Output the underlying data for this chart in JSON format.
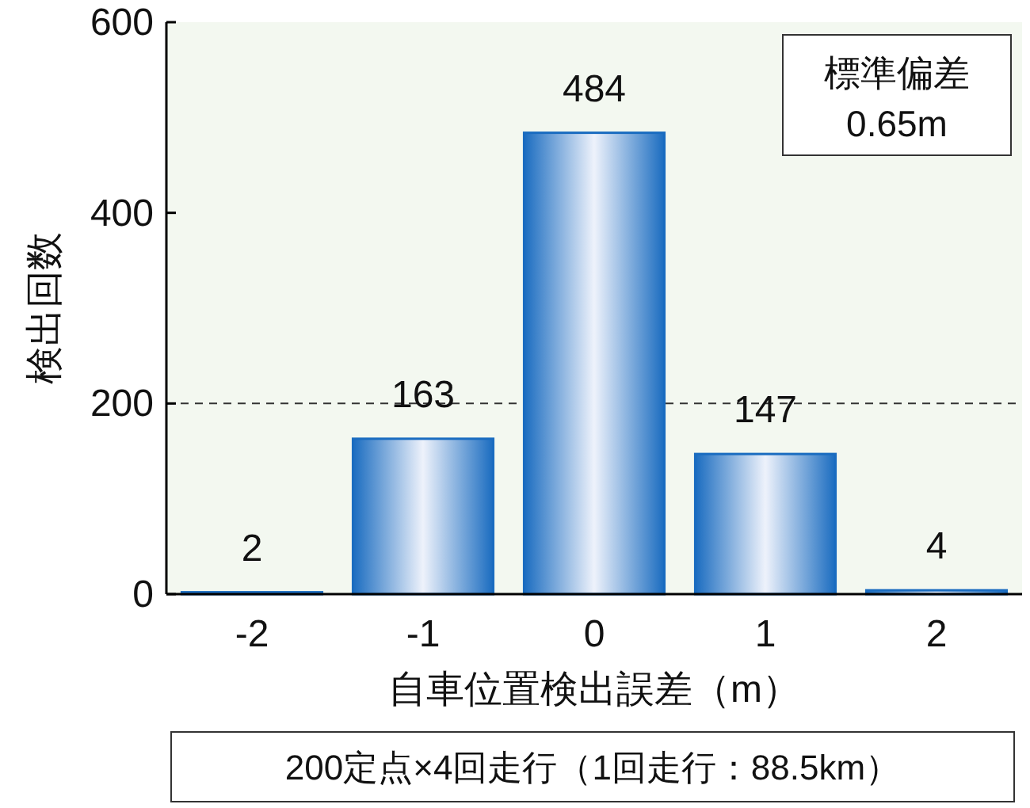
{
  "chart_data": {
    "type": "bar",
    "categories": [
      "-2",
      "-1",
      "0",
      "1",
      "2"
    ],
    "values": [
      2,
      163,
      484,
      147,
      4
    ],
    "color": "#1a6cc0",
    "ylim": [
      0,
      600
    ],
    "yticks": [
      0,
      200,
      400,
      600
    ],
    "xlabel": "自車位置検出誤差（m）",
    "ylabel": "検出回数",
    "data_labels": true,
    "ref_lines": [
      {
        "axis": "y",
        "value": 200,
        "line_style": "dashed",
        "color": "#333333"
      }
    ],
    "annotations": [
      "標準偏差\n0.65m",
      "200定点×4回走行（1回走行：88.5km）"
    ]
  }
}
